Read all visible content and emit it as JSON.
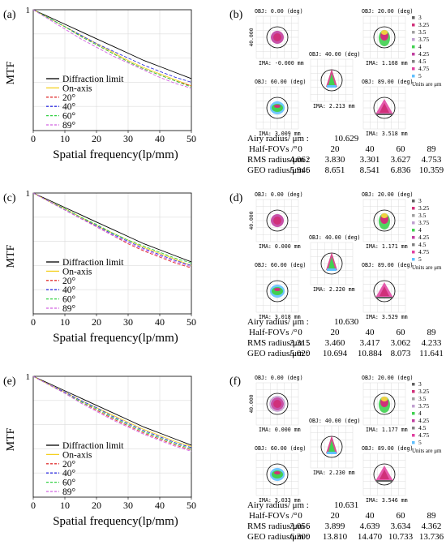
{
  "mtf_panels": [
    {
      "label": "(a)",
      "ylabel": "MTF",
      "xlabel": "Spatial frequency(lp/mm)",
      "xticks": [
        "0",
        "10",
        "20",
        "30",
        "40",
        "50"
      ],
      "legend": [
        "Diffraction limit",
        "On-axis",
        "20°",
        "40°",
        "60°",
        "89°"
      ]
    },
    {
      "label": "(c)",
      "ylabel": "MTF",
      "xlabel": "Spatial frequency(lp/mm)",
      "xticks": [
        "0",
        "10",
        "20",
        "30",
        "40",
        "50"
      ],
      "legend": [
        "Diffraction limit",
        "On-axis",
        "20°",
        "40°",
        "60°",
        "89°"
      ]
    },
    {
      "label": "(e)",
      "ylabel": "MTF",
      "xlabel": "Spatial frequency(lp/mm)",
      "xticks": [
        "0",
        "10",
        "20",
        "30",
        "40",
        "50"
      ],
      "legend": [
        "Diffraction limit",
        "On-axis",
        "20°",
        "40°",
        "60°",
        "89°"
      ]
    }
  ],
  "spot_panels": [
    {
      "label": "(b)",
      "scale_label": "40.000",
      "units_note": "Units are μm",
      "wavelength_legend": [
        "3",
        "3.25",
        "3.5",
        "3.75",
        "4",
        "4.25",
        "4.5",
        "4.75",
        "5"
      ],
      "cells": [
        {
          "obj": "OBJ: 0.00 (deg)",
          "ima": "IMA: -0.000 mm"
        },
        {
          "obj": "OBJ: 40.00 (deg)",
          "ima": "IMA: 2.213 mm"
        },
        {
          "obj": "OBJ: 20.00 (deg)",
          "ima": "IMA: 1.168 mm"
        },
        {
          "obj": "OBJ: 60.00 (deg)",
          "ima": "IMA: 3.009 mm"
        },
        {
          "obj": "OBJ: 89.00 (deg)",
          "ima": "IMA: 3.518 mm"
        }
      ],
      "airy_label": "Airy radius/ μm :",
      "airy_value": "10.629",
      "fov_label": "Half-FOVs /°",
      "fovs": [
        "0",
        "20",
        "40",
        "60",
        "89"
      ],
      "rms_label": "RMS radius/μm :",
      "rms": [
        "4.062",
        "3.830",
        "3.301",
        "3.627",
        "4.753"
      ],
      "geo_label": "GEO radius/μm :",
      "geo": [
        "5.946",
        "8.651",
        "8.541",
        "6.836",
        "10.359"
      ]
    },
    {
      "label": "(d)",
      "scale_label": "40.000",
      "units_note": "Units are μm",
      "wavelength_legend": [
        "3",
        "3.25",
        "3.5",
        "3.75",
        "4",
        "4.25",
        "4.5",
        "4.75",
        "5"
      ],
      "cells": [
        {
          "obj": "OBJ: 0.00 (deg)",
          "ima": "IMA: 0.000 mm"
        },
        {
          "obj": "OBJ: 40.00 (deg)",
          "ima": "IMA: 2.220 mm"
        },
        {
          "obj": "OBJ: 20.00 (deg)",
          "ima": "IMA: 1.171 mm"
        },
        {
          "obj": "OBJ: 60.00 (deg)",
          "ima": "IMA: 3.018 mm"
        },
        {
          "obj": "OBJ: 89.00 (deg)",
          "ima": "IMA: 3.529 mm"
        }
      ],
      "airy_label": "Airy radius/ μm :",
      "airy_value": "10.630",
      "fov_label": "Half-FOVs /°",
      "fovs": [
        "0",
        "20",
        "40",
        "60",
        "89"
      ],
      "rms_label": "RMS radius/μm :",
      "rms": [
        "3.315",
        "3.460",
        "3.417",
        "3.062",
        "4.233"
      ],
      "geo_label": "GEO radius/μm :",
      "geo": [
        "5.020",
        "10.694",
        "10.884",
        "8.073",
        "11.641"
      ]
    },
    {
      "label": "(f)",
      "scale_label": "40.000",
      "units_note": "Units are μm",
      "wavelength_legend": [
        "3",
        "3.25",
        "3.5",
        "3.75",
        "4",
        "4.25",
        "4.5",
        "4.75",
        "5"
      ],
      "cells": [
        {
          "obj": "OBJ: 0.00 (deg)",
          "ima": "IMA: 0.000 mm"
        },
        {
          "obj": "OBJ: 40.00 (deg)",
          "ima": "IMA: 2.230 mm"
        },
        {
          "obj": "OBJ: 20.00 (deg)",
          "ima": "IMA: 1.177 mm"
        },
        {
          "obj": "OBJ: 60.00 (deg)",
          "ima": "IMA: 3.033 mm"
        },
        {
          "obj": "OBJ: 89.00 (deg)",
          "ima": "IMA: 3.546 mm"
        }
      ],
      "airy_label": "Airy radius/ μm :",
      "airy_value": "10.631",
      "fov_label": "Half-FOVs /°",
      "fovs": [
        "0",
        "20",
        "40",
        "60",
        "89"
      ],
      "rms_label": "RMS radius/μm :",
      "rms": [
        "3.056",
        "3.899",
        "4.639",
        "3.634",
        "4.362"
      ],
      "geo_label": "GEO radius/μm :",
      "geo": [
        "6.300",
        "13.810",
        "14.470",
        "10.733",
        "13.736"
      ]
    }
  ],
  "colors": {
    "diffraction": "#000000",
    "on_axis": "#f5d020",
    "f20": "#e03030",
    "f40": "#3030e0",
    "f60": "#30d040",
    "f89": "#d060e0",
    "wl": [
      "#606060",
      "#d0307a",
      "#a0a0a0",
      "#c0a0d0",
      "#40d050",
      "#c040a0",
      "#808080",
      "#e040a0",
      "#60c0ff"
    ]
  },
  "chart_data": [
    {
      "type": "line",
      "panel": "(a)",
      "xlabel": "Spatial frequency(lp/mm)",
      "ylabel": "MTF",
      "xlim": [
        0,
        50
      ],
      "ylim": [
        0,
        1
      ],
      "x": [
        0,
        5,
        10,
        15,
        20,
        25,
        30,
        35,
        40,
        45,
        50
      ],
      "series": [
        {
          "name": "Diffraction limit",
          "values": [
            1,
            0.94,
            0.88,
            0.82,
            0.76,
            0.7,
            0.64,
            0.58,
            0.53,
            0.48,
            0.43
          ]
        },
        {
          "name": "On-axis",
          "values": [
            1,
            0.93,
            0.86,
            0.79,
            0.72,
            0.65,
            0.58,
            0.52,
            0.47,
            0.42,
            0.37
          ]
        },
        {
          "name": "20°",
          "values": [
            1,
            0.93,
            0.86,
            0.78,
            0.71,
            0.64,
            0.57,
            0.51,
            0.46,
            0.41,
            0.37
          ]
        },
        {
          "name": "40°",
          "values": [
            1,
            0.93,
            0.86,
            0.79,
            0.72,
            0.66,
            0.6,
            0.54,
            0.49,
            0.44,
            0.4
          ]
        },
        {
          "name": "60°",
          "values": [
            1,
            0.93,
            0.86,
            0.78,
            0.71,
            0.64,
            0.57,
            0.51,
            0.46,
            0.41,
            0.36
          ]
        },
        {
          "name": "89°",
          "values": [
            1,
            0.92,
            0.84,
            0.76,
            0.69,
            0.62,
            0.56,
            0.5,
            0.44,
            0.39,
            0.35
          ]
        }
      ]
    },
    {
      "type": "line",
      "panel": "(c)",
      "xlabel": "Spatial frequency(lp/mm)",
      "ylabel": "MTF",
      "xlim": [
        0,
        50
      ],
      "ylim": [
        0,
        1
      ],
      "x": [
        0,
        5,
        10,
        15,
        20,
        25,
        30,
        35,
        40,
        45,
        50
      ],
      "series": [
        {
          "name": "Diffraction limit",
          "values": [
            1,
            0.94,
            0.88,
            0.82,
            0.76,
            0.7,
            0.64,
            0.58,
            0.53,
            0.48,
            0.43
          ]
        },
        {
          "name": "On-axis",
          "values": [
            1,
            0.93,
            0.87,
            0.8,
            0.73,
            0.67,
            0.61,
            0.55,
            0.5,
            0.45,
            0.4
          ]
        },
        {
          "name": "20°",
          "values": [
            1,
            0.93,
            0.86,
            0.79,
            0.72,
            0.65,
            0.58,
            0.52,
            0.47,
            0.42,
            0.38
          ]
        },
        {
          "name": "40°",
          "values": [
            1,
            0.93,
            0.86,
            0.79,
            0.73,
            0.66,
            0.6,
            0.54,
            0.49,
            0.44,
            0.4
          ]
        },
        {
          "name": "60°",
          "values": [
            1,
            0.93,
            0.87,
            0.8,
            0.74,
            0.67,
            0.61,
            0.56,
            0.51,
            0.46,
            0.42
          ]
        },
        {
          "name": "89°",
          "values": [
            1,
            0.93,
            0.86,
            0.79,
            0.72,
            0.65,
            0.59,
            0.53,
            0.48,
            0.43,
            0.39
          ]
        }
      ]
    },
    {
      "type": "line",
      "panel": "(e)",
      "xlabel": "Spatial frequency(lp/mm)",
      "ylabel": "MTF",
      "xlim": [
        0,
        50
      ],
      "ylim": [
        0,
        1
      ],
      "x": [
        0,
        5,
        10,
        15,
        20,
        25,
        30,
        35,
        40,
        45,
        50
      ],
      "series": [
        {
          "name": "Diffraction limit",
          "values": [
            1,
            0.94,
            0.88,
            0.82,
            0.76,
            0.7,
            0.64,
            0.58,
            0.53,
            0.48,
            0.43
          ]
        },
        {
          "name": "On-axis",
          "values": [
            1,
            0.93,
            0.87,
            0.8,
            0.74,
            0.68,
            0.62,
            0.56,
            0.51,
            0.46,
            0.42
          ]
        },
        {
          "name": "20°",
          "values": [
            1,
            0.93,
            0.86,
            0.79,
            0.72,
            0.65,
            0.59,
            0.53,
            0.48,
            0.43,
            0.39
          ]
        },
        {
          "name": "40°",
          "values": [
            1,
            0.93,
            0.87,
            0.8,
            0.74,
            0.67,
            0.61,
            0.55,
            0.5,
            0.45,
            0.41
          ]
        },
        {
          "name": "60°",
          "values": [
            1,
            0.93,
            0.86,
            0.79,
            0.73,
            0.66,
            0.6,
            0.54,
            0.49,
            0.44,
            0.4
          ]
        },
        {
          "name": "89°",
          "values": [
            1,
            0.93,
            0.86,
            0.78,
            0.71,
            0.64,
            0.58,
            0.52,
            0.47,
            0.42,
            0.38
          ]
        }
      ]
    }
  ]
}
